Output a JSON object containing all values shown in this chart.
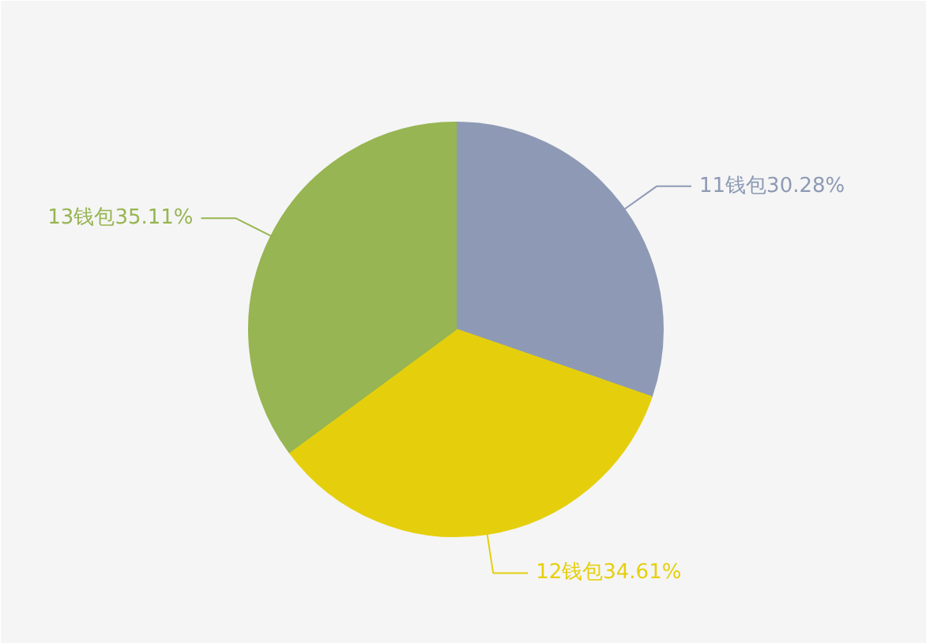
{
  "chart_data": {
    "type": "pie",
    "categories": [
      "11钱包",
      "12钱包",
      "13钱包"
    ],
    "values": [
      30.28,
      34.61,
      35.11
    ],
    "colors": [
      "#8e9ab5",
      "#e5cf0d",
      "#97b552"
    ],
    "value_labels": [
      "30.28%",
      "34.61%",
      "35.11%"
    ]
  }
}
